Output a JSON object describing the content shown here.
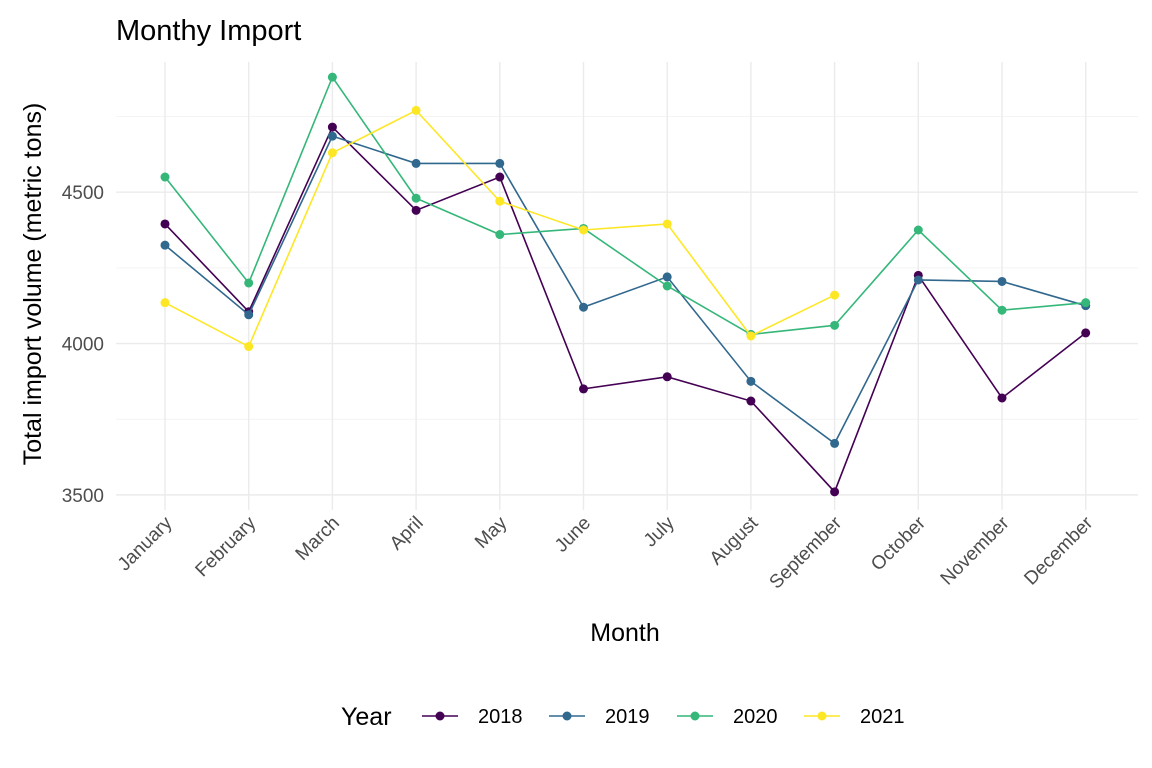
{
  "chart_data": {
    "type": "line",
    "title": "Monthy Import",
    "xlabel": "Month",
    "ylabel": "Total import volume (metric tons)",
    "categories": [
      "January",
      "February",
      "March",
      "April",
      "May",
      "June",
      "July",
      "August",
      "September",
      "October",
      "November",
      "December"
    ],
    "ylim": [
      3450,
      4930
    ],
    "yticks": [
      3500,
      4000,
      4500
    ],
    "grid": true,
    "legend": {
      "title": "Year",
      "position": "bottom"
    },
    "series": [
      {
        "name": "2018",
        "color": "#440154",
        "values": [
          4395,
          4105,
          4715,
          4440,
          4550,
          3850,
          3890,
          3810,
          3510,
          4225,
          3820,
          4035
        ]
      },
      {
        "name": "2019",
        "color": "#31688e",
        "values": [
          4325,
          4095,
          4685,
          4595,
          4595,
          4120,
          4220,
          3875,
          3670,
          4210,
          4205,
          4125
        ]
      },
      {
        "name": "2020",
        "color": "#35b779",
        "values": [
          4550,
          4200,
          4880,
          4480,
          4360,
          4380,
          4190,
          4030,
          4060,
          4375,
          4110,
          4135
        ]
      },
      {
        "name": "2021",
        "color": "#fde725",
        "values": [
          4135,
          3990,
          4630,
          4770,
          4470,
          4375,
          4395,
          4025,
          4160,
          null,
          null,
          null
        ]
      }
    ]
  }
}
